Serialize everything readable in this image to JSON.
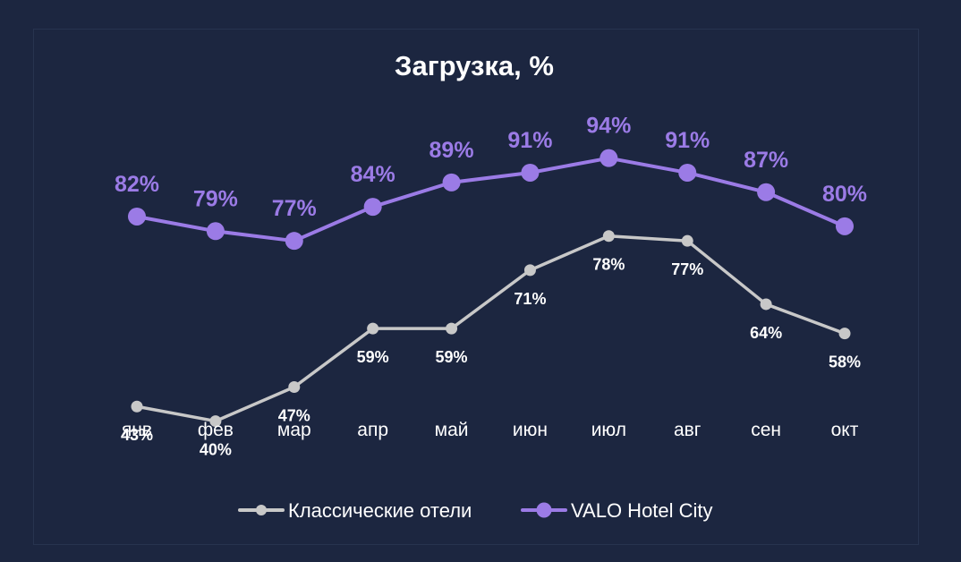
{
  "chart_data": {
    "type": "line",
    "title": "Загрузка, %",
    "categories": [
      "янв",
      "фев",
      "мар",
      "апр",
      "май",
      "июн",
      "июл",
      "авг",
      "сен",
      "окт"
    ],
    "ylim": [
      30,
      100
    ],
    "series": [
      {
        "name": "Классические отели",
        "values": [
          43,
          40,
          47,
          59,
          59,
          71,
          78,
          77,
          64,
          58
        ],
        "labels": [
          "43%",
          "40%",
          "47%",
          "59%",
          "59%",
          "71%",
          "78%",
          "77%",
          "64%",
          "58%"
        ],
        "color": "#c8c8c8",
        "label_color": "#ffffff",
        "label_position": "below"
      },
      {
        "name": "VALO Hotel City",
        "values": [
          82,
          79,
          77,
          84,
          89,
          91,
          94,
          91,
          87,
          80
        ],
        "labels": [
          "82%",
          "79%",
          "77%",
          "84%",
          "89%",
          "91%",
          "94%",
          "91%",
          "87%",
          "80%"
        ],
        "color": "#9b7be6",
        "label_color": "#9b7be6",
        "label_position": "above"
      }
    ],
    "legend_position": "bottom-center",
    "grid": false,
    "background": "#1c2640",
    "text_color": "#ffffff"
  }
}
